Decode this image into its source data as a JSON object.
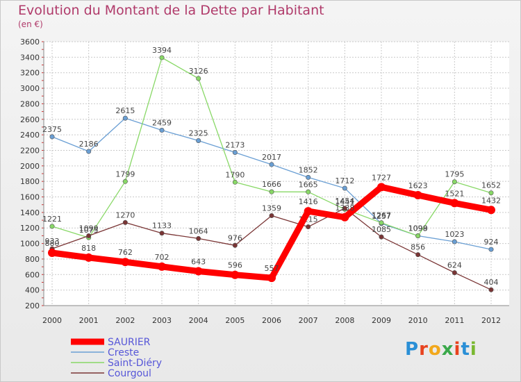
{
  "header": {
    "title": "Evolution du Montant de la Dette par Habitant",
    "subtitle": "(en €)"
  },
  "logo": {
    "text": "Proxiti",
    "colors": [
      "#2a8fd6",
      "#e8431f",
      "#f2a81c",
      "#3aa84a",
      "#e8431f",
      "#2a8fd6",
      "#7ab830"
    ]
  },
  "colors": {
    "title": "#b03a6a",
    "grid": "#c9c9c9",
    "axis_tick_mark": "#cc3333"
  },
  "chart_data": {
    "type": "line",
    "title": "Evolution du Montant de la Dette par Habitant",
    "ylabel": "(en €)",
    "xlabel": "",
    "x": [
      "2000",
      "2001",
      "2002",
      "2003",
      "2004",
      "2005",
      "2006",
      "2007",
      "2008",
      "2009",
      "2010",
      "2011",
      "2012"
    ],
    "ylim": [
      200,
      3600
    ],
    "yticks": [
      200,
      400,
      600,
      800,
      1000,
      1200,
      1400,
      1600,
      1800,
      2000,
      2200,
      2400,
      2600,
      2800,
      3000,
      3200,
      3400,
      3600
    ],
    "grid": true,
    "legend_position": "bottom-left",
    "series": [
      {
        "name": "Creste",
        "color": "#6a9fd4",
        "values": [
          2375,
          2186,
          2615,
          2459,
          2325,
          2173,
          2017,
          1852,
          1712,
          1257,
          1099,
          1023,
          924
        ]
      },
      {
        "name": "Saint-Diéry",
        "color": "#88d866",
        "values": [
          1221,
          1075,
          1799,
          3394,
          3126,
          1790,
          1666,
          1665,
          1441,
          1267,
          1098,
          1795,
          1652
        ]
      },
      {
        "name": "Courgoul",
        "color": "#7a3535",
        "values": [
          933,
          1099,
          1270,
          1133,
          1064,
          976,
          1359,
          1215,
          1454,
          1085,
          856,
          624,
          404
        ]
      },
      {
        "name": "SAURIER",
        "color": "#ff0000",
        "values": [
          880,
          818,
          762,
          702,
          643,
          596,
          557,
          1416,
          1338,
          1727,
          1623,
          1521,
          1432
        ]
      }
    ],
    "legend_order": [
      "SAURIER",
      "Creste",
      "Saint-Diéry",
      "Courgoul"
    ]
  }
}
